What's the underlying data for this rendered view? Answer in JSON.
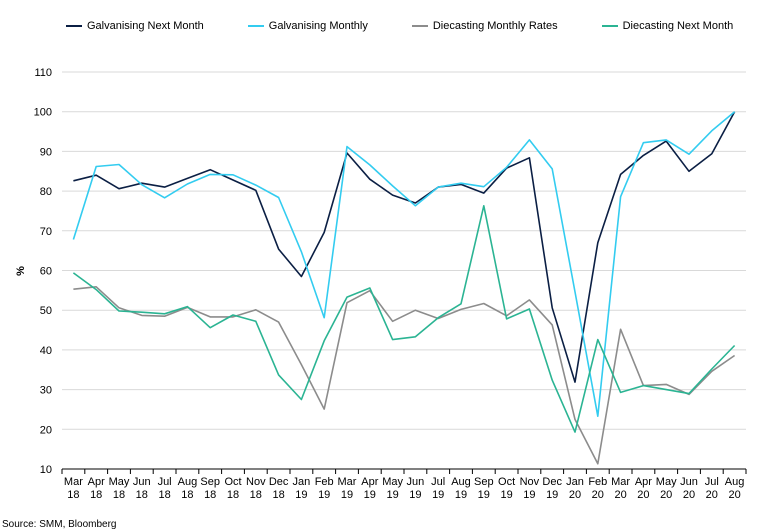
{
  "chart_data": {
    "type": "line",
    "ylabel": "%",
    "ylim": [
      10,
      110
    ],
    "yticks": [
      10,
      20,
      30,
      40,
      50,
      60,
      70,
      80,
      90,
      100,
      110
    ],
    "grid": "horizontal",
    "legend_position": "top",
    "categories": [
      [
        "Mar",
        "18"
      ],
      [
        "Apr",
        "18"
      ],
      [
        "May",
        "18"
      ],
      [
        "Jun",
        "18"
      ],
      [
        "Jul",
        "18"
      ],
      [
        "Aug",
        "18"
      ],
      [
        "Sep",
        "18"
      ],
      [
        "Oct",
        "18"
      ],
      [
        "Nov",
        "18"
      ],
      [
        "Dec",
        "18"
      ],
      [
        "Jan",
        "19"
      ],
      [
        "Feb",
        "19"
      ],
      [
        "Mar",
        "19"
      ],
      [
        "Apr",
        "19"
      ],
      [
        "May",
        "19"
      ],
      [
        "Jun",
        "19"
      ],
      [
        "Jul",
        "19"
      ],
      [
        "Aug",
        "19"
      ],
      [
        "Sep",
        "19"
      ],
      [
        "Oct",
        "19"
      ],
      [
        "Nov",
        "19"
      ],
      [
        "Dec",
        "19"
      ],
      [
        "Jan",
        "20"
      ],
      [
        "Feb",
        "20"
      ],
      [
        "Mar",
        "20"
      ],
      [
        "Apr",
        "20"
      ],
      [
        "May",
        "20"
      ],
      [
        "Jun",
        "20"
      ],
      [
        "Jul",
        "20"
      ],
      [
        "Aug",
        "20"
      ]
    ],
    "series": [
      {
        "name": "Galvanising Next Month",
        "color": "#0b1f44",
        "values": [
          82.6,
          84,
          80.6,
          82,
          81,
          83.2,
          85.4,
          82.8,
          80.2,
          65.4,
          58.5,
          69.6,
          89.6,
          83,
          79,
          77,
          81,
          81.7,
          79.5,
          85.8,
          88.4,
          50.6,
          31.9,
          67,
          84.2,
          89,
          92.6,
          85,
          89.4,
          100
        ]
      },
      {
        "name": "Galvanising Monthly",
        "color": "#33ccf0",
        "values": [
          67.8,
          86.2,
          86.7,
          81.6,
          78.3,
          81.8,
          84.2,
          84.1,
          81.5,
          78.4,
          64.7,
          48.1,
          91.2,
          86.6,
          81.3,
          76.3,
          81,
          82,
          81.1,
          86,
          92.9,
          85.6,
          54.6,
          23.3,
          78.6,
          92.2,
          92.9,
          89.3,
          95.2,
          100
        ]
      },
      {
        "name": "Diecasting Monthly Rates",
        "color": "#8c8c8c",
        "values": [
          55.3,
          55.9,
          50.6,
          48.7,
          48.5,
          50.7,
          48.3,
          48.3,
          50.1,
          47,
          36.3,
          25.1,
          51.9,
          54.9,
          47.2,
          50,
          47.9,
          50.2,
          51.7,
          48.6,
          52.6,
          46.3,
          22.5,
          11.3,
          45.2,
          31,
          31.3,
          28.8,
          34.6,
          38.6
        ]
      },
      {
        "name": "Diecasting Next Month",
        "color": "#2bb493",
        "values": [
          59.4,
          55.2,
          49.8,
          49.5,
          49.1,
          50.9,
          45.6,
          48.8,
          47.2,
          33.7,
          27.5,
          42.3,
          53.3,
          55.6,
          42.6,
          43.3,
          48.1,
          51.6,
          76.3,
          47.8,
          50.3,
          32.4,
          19.3,
          42.6,
          29.3,
          31,
          30,
          29,
          35.2,
          41.1
        ]
      }
    ]
  },
  "source": "Source: SMM, Bloomberg"
}
